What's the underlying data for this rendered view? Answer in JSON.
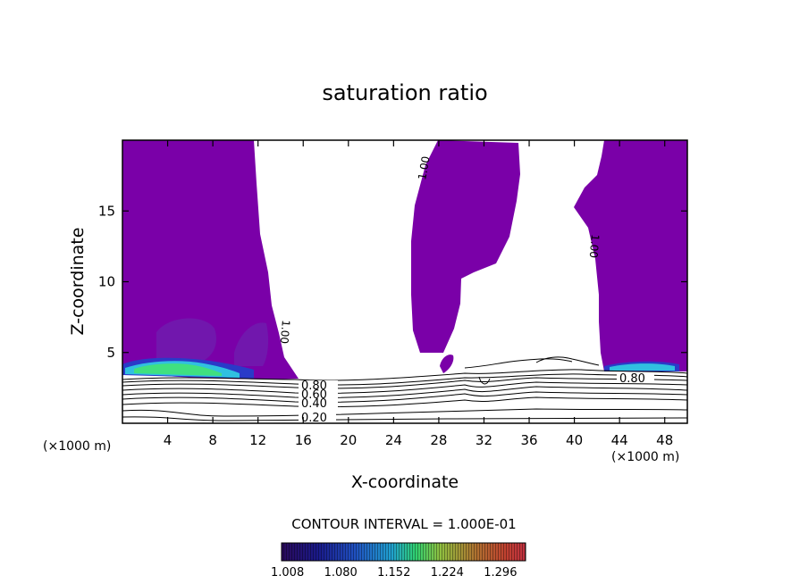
{
  "chart_data": {
    "type": "contour",
    "title": "saturation ratio",
    "xlabel": "X-coordinate",
    "ylabel": "Z-coordinate",
    "x_unit_left": "(×1000 m)",
    "x_unit_right": "(×1000 m)",
    "xlim": [
      0,
      50
    ],
    "ylim": [
      0,
      20
    ],
    "x_ticks": [
      4,
      8,
      12,
      16,
      20,
      24,
      28,
      32,
      36,
      40,
      44,
      48
    ],
    "x_tick_labels": [
      "4",
      "8",
      "12",
      "16",
      "20",
      "24",
      "28",
      "32",
      "36",
      "40",
      "44",
      "48"
    ],
    "y_ticks": [
      5,
      10,
      15
    ],
    "y_tick_labels": [
      "5",
      "10",
      "15"
    ],
    "contour_interval_text": "CONTOUR INTERVAL = 1.000E-01",
    "contour_labels": [
      "1.00",
      "1.00",
      "1.00",
      "0.80",
      "0.60",
      "0.40",
      "0.20",
      "0.80"
    ],
    "supersaturated_regions": [
      {
        "x": [
          0,
          15.5
        ],
        "z": [
          3.5,
          20
        ]
      },
      {
        "x": [
          26,
          35
        ],
        "z": [
          3.5,
          20
        ]
      },
      {
        "x": [
          42,
          50
        ],
        "z": [
          3.5,
          20
        ]
      }
    ],
    "colorbar": {
      "ticks": [
        1.008,
        1.08,
        1.152,
        1.224,
        1.296
      ],
      "tick_labels": [
        "1.008",
        "1.080",
        "1.152",
        "1.224",
        "1.296"
      ],
      "range": [
        1.0,
        1.33
      ],
      "colors": [
        "#2a0a5a",
        "#1a1a8a",
        "#2050c0",
        "#20a0d0",
        "#30d070",
        "#90c040",
        "#b07030",
        "#c04030",
        "#c03040"
      ]
    },
    "colors": {
      "fill": "#7a00a8",
      "fill_dark": "#6a1aa0",
      "strong_cyan": "#30c0e0",
      "strong_green": "#40e080",
      "contour_line": "#000000"
    },
    "grid": false
  }
}
